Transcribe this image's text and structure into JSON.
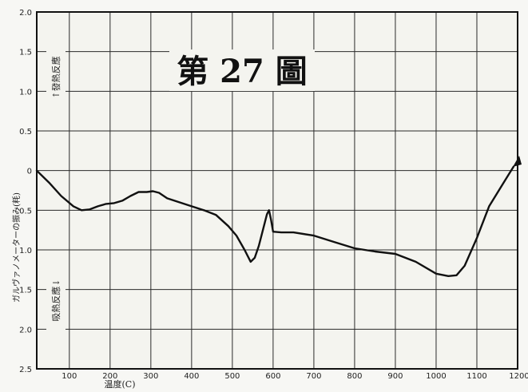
{
  "chart_data": {
    "type": "line",
    "title": "第 27 圖",
    "xlabel": "温度(C)",
    "ylabel": "ガルヴァノメーターの振み(粍)",
    "xlim": [
      20,
      1200
    ],
    "ylim": [
      2.5,
      -2.0
    ],
    "y_inverted": true,
    "grid": true,
    "x_ticks": [
      "100",
      "200",
      "300",
      "400",
      "500",
      "600",
      "700",
      "800",
      "900",
      "1000",
      "1100",
      "1200"
    ],
    "y_ticks": [
      {
        "value": -2.0,
        "label": "2.0"
      },
      {
        "value": -1.5,
        "label": "1.5"
      },
      {
        "value": -1.0,
        "label": "1.0"
      },
      {
        "value": -0.5,
        "label": "0.5"
      },
      {
        "value": 0.0,
        "label": "0"
      },
      {
        "value": 0.5,
        "label": "0.5"
      },
      {
        "value": 1.0,
        "label": "1.0"
      },
      {
        "value": 1.5,
        "label": "1.5"
      },
      {
        "value": 2.0,
        "label": "2.0"
      },
      {
        "value": 2.5,
        "label": "2.5"
      }
    ],
    "annotations": {
      "upper": "↑發熱反應",
      "lower": "吸熱反應↓"
    },
    "series": [
      {
        "x": [
          20,
          50,
          80,
          110,
          130,
          150,
          170,
          190,
          210,
          230,
          250,
          270,
          290,
          305,
          320,
          340,
          370,
          400,
          430,
          460,
          490,
          510,
          530,
          545,
          555,
          565,
          575,
          585,
          590,
          595,
          600,
          620,
          650,
          700,
          750,
          800,
          850,
          900,
          950,
          1000,
          1030,
          1050,
          1070,
          1100,
          1130,
          1160,
          1190
        ],
        "y": [
          0.0,
          0.15,
          0.32,
          0.45,
          0.5,
          0.49,
          0.45,
          0.42,
          0.41,
          0.38,
          0.32,
          0.27,
          0.27,
          0.26,
          0.28,
          0.35,
          0.4,
          0.45,
          0.5,
          0.56,
          0.7,
          0.82,
          1.0,
          1.15,
          1.1,
          0.95,
          0.75,
          0.55,
          0.5,
          0.62,
          0.77,
          0.78,
          0.78,
          0.82,
          0.9,
          0.98,
          1.02,
          1.05,
          1.15,
          1.3,
          1.33,
          1.32,
          1.2,
          0.85,
          0.45,
          0.2,
          -0.05
        ]
      }
    ]
  }
}
